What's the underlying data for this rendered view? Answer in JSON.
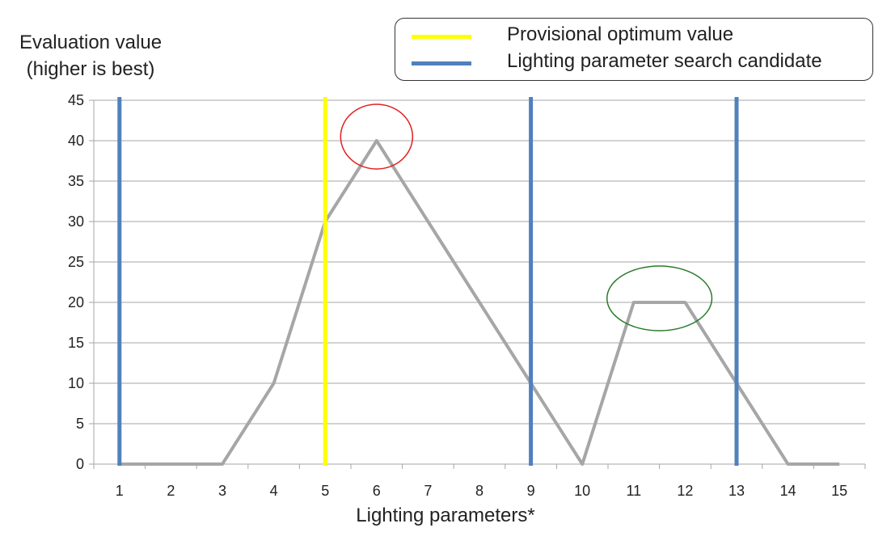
{
  "chart_data": {
    "type": "line",
    "ylabel_lines": [
      "Evaluation value",
      "(higher is best)"
    ],
    "xlabel": "Lighting parameters*",
    "x_categories": [
      "1",
      "2",
      "3",
      "4",
      "5",
      "6",
      "7",
      "8",
      "9",
      "10",
      "11",
      "12",
      "13",
      "14",
      "15"
    ],
    "ylim": [
      0,
      45
    ],
    "y_ticks": [
      0,
      5,
      10,
      15,
      20,
      25,
      30,
      35,
      40,
      45
    ],
    "grid": true,
    "legend_position": "top-right",
    "series": [
      {
        "values": [
          0,
          0,
          0,
          10,
          30,
          40,
          30,
          20,
          10,
          0,
          20,
          20,
          10,
          0,
          0
        ],
        "color": "#a6a6a6"
      }
    ],
    "vertical_markers": [
      {
        "x": 1,
        "legend_ref": 1
      },
      {
        "x": 5,
        "legend_ref": 0
      },
      {
        "x": 9,
        "legend_ref": 1
      },
      {
        "x": 13,
        "legend_ref": 1
      }
    ],
    "highlights": [
      {
        "x_center": 6,
        "y_center": 40.5,
        "x_radius": 0.7,
        "y_radius": 4,
        "color": "#e02020"
      },
      {
        "x_center": 11.5,
        "y_center": 20.5,
        "x_radius": 1.02,
        "y_radius": 4,
        "color": "#2a7a2a"
      }
    ],
    "legend": [
      {
        "label": "Provisional optimum value",
        "color": "#ffff00"
      },
      {
        "label": "Lighting parameter search candidate",
        "color": "#4f81bd"
      }
    ]
  }
}
